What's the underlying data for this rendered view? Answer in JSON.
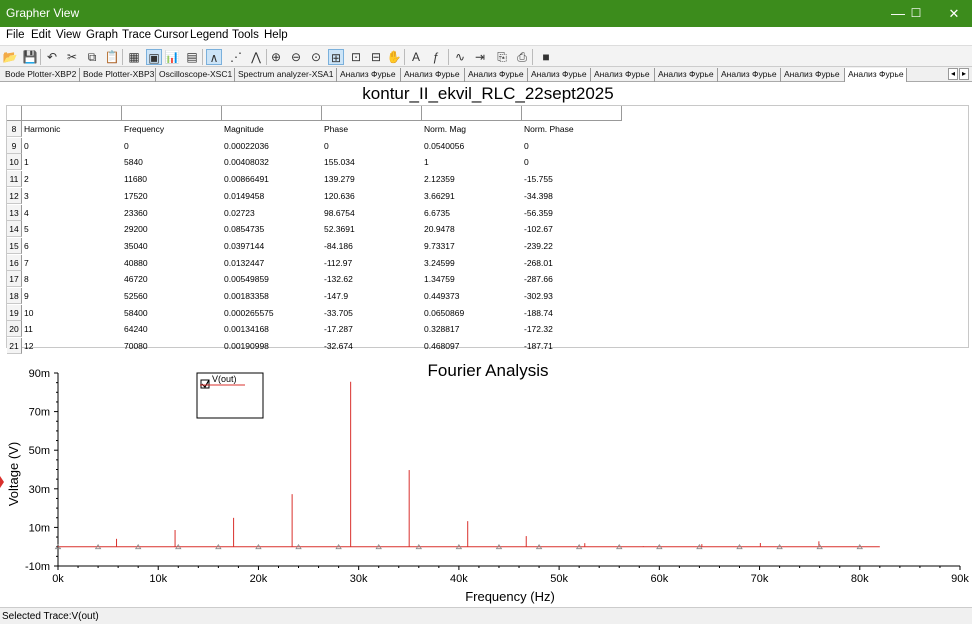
{
  "window": {
    "title": "Grapher View",
    "minimize_icon": "—",
    "maximize_icon": "☐",
    "close_icon": "✕"
  },
  "menu": [
    "File",
    "Edit",
    "View",
    "Graph",
    "Trace",
    "Cursor",
    "Legend",
    "Tools",
    "Help"
  ],
  "toolbar": [
    {
      "name": "open-icon",
      "glyph": "📂",
      "active": false
    },
    {
      "name": "save-icon",
      "glyph": "💾",
      "active": false
    },
    {
      "name": "undo-icon",
      "glyph": "↶",
      "active": false
    },
    {
      "name": "cut-icon",
      "glyph": "✂",
      "active": false
    },
    {
      "name": "copy-icon",
      "glyph": "⧉",
      "active": false
    },
    {
      "name": "paste-icon",
      "glyph": "📋",
      "active": false
    },
    {
      "name": "grid-icon",
      "glyph": "▦",
      "active": false
    },
    {
      "name": "view-icon",
      "glyph": "▣",
      "active": true
    },
    {
      "name": "chart-icon",
      "glyph": "📊",
      "active": false
    },
    {
      "name": "print-icon",
      "glyph": "▤",
      "active": false
    },
    {
      "name": "trace-icon",
      "glyph": "∧",
      "active": true
    },
    {
      "name": "cursor-1-icon",
      "glyph": "⋰",
      "active": false
    },
    {
      "name": "cursor-2-icon",
      "glyph": "⋀",
      "active": false
    },
    {
      "name": "zoom-in-icon",
      "glyph": "⊕",
      "active": false
    },
    {
      "name": "zoom-out-icon",
      "glyph": "⊖",
      "active": false
    },
    {
      "name": "zoom-fit-icon",
      "glyph": "⊙",
      "active": false
    },
    {
      "name": "zoom-area-icon",
      "glyph": "⊞",
      "active": true
    },
    {
      "name": "zoom-x-icon",
      "glyph": "⊡",
      "active": false
    },
    {
      "name": "zoom-y-icon",
      "glyph": "⊟",
      "active": false
    },
    {
      "name": "pan-hand-icon",
      "glyph": "✋",
      "active": false
    },
    {
      "name": "text-icon",
      "glyph": "A",
      "active": false
    },
    {
      "name": "formula-icon",
      "glyph": "ƒ",
      "active": false
    },
    {
      "name": "wave-icon",
      "glyph": "∿",
      "active": false
    },
    {
      "name": "export-icon",
      "glyph": "⇥",
      "active": false
    },
    {
      "name": "export-2-icon",
      "glyph": "⎘",
      "active": false
    },
    {
      "name": "export-3-icon",
      "glyph": "⎙",
      "active": false
    },
    {
      "name": "stop-icon",
      "glyph": "■",
      "active": false
    }
  ],
  "tabs": [
    "Bode Plotter-XBP2",
    "Bode Plotter-XBP3",
    "Oscilloscope-XSC1",
    "Spectrum analyzer-XSA1",
    "Анализ Фурье",
    "Анализ Фурье",
    "Анализ Фурье",
    "Анализ Фурье",
    "Анализ Фурье",
    "Анализ Фурье",
    "Анализ Фурье",
    "Анализ Фурье",
    "Анализ Фурье"
  ],
  "tab_arrows": [
    "◂",
    "▸"
  ],
  "table": {
    "title": "kontur_II_ekvil_RLC_22sept2025",
    "header_row_number": "8",
    "headers": [
      "Harmonic",
      "Frequency",
      "Magnitude",
      "Phase",
      "Norm. Mag",
      "Norm. Phase"
    ],
    "rows": [
      {
        "n": "9",
        "cells": [
          "0",
          "0",
          "0.00022036",
          "0",
          "0.0540056",
          "0"
        ]
      },
      {
        "n": "10",
        "cells": [
          "1",
          "5840",
          "0.00408032",
          "155.034",
          "1",
          "0"
        ]
      },
      {
        "n": "11",
        "cells": [
          "2",
          "11680",
          "0.00866491",
          "139.279",
          "2.12359",
          "-15.755"
        ]
      },
      {
        "n": "12",
        "cells": [
          "3",
          "17520",
          "0.0149458",
          "120.636",
          "3.66291",
          "-34.398"
        ]
      },
      {
        "n": "13",
        "cells": [
          "4",
          "23360",
          "0.02723",
          "98.6754",
          "6.6735",
          "-56.359"
        ]
      },
      {
        "n": "14",
        "cells": [
          "5",
          "29200",
          "0.0854735",
          "52.3691",
          "20.9478",
          "-102.67"
        ]
      },
      {
        "n": "15",
        "cells": [
          "6",
          "35040",
          "0.0397144",
          "-84.186",
          "9.73317",
          "-239.22"
        ]
      },
      {
        "n": "16",
        "cells": [
          "7",
          "40880",
          "0.0132447",
          "-112.97",
          "3.24599",
          "-268.01"
        ]
      },
      {
        "n": "17",
        "cells": [
          "8",
          "46720",
          "0.00549859",
          "-132.62",
          "1.34759",
          "-287.66"
        ]
      },
      {
        "n": "18",
        "cells": [
          "9",
          "52560",
          "0.00183358",
          "-147.9",
          "0.449373",
          "-302.93"
        ]
      },
      {
        "n": "19",
        "cells": [
          "10",
          "58400",
          "0.000265575",
          "-33.705",
          "0.0650869",
          "-188.74"
        ]
      },
      {
        "n": "20",
        "cells": [
          "11",
          "64240",
          "0.00134168",
          "-17.287",
          "0.328817",
          "-172.32"
        ]
      },
      {
        "n": "21",
        "cells": [
          "12",
          "70080",
          "0.00190998",
          "-32.674",
          "0.468097",
          "-187.71"
        ]
      }
    ]
  },
  "chart_data": {
    "type": "bar",
    "title": "Fourier Analysis",
    "xlabel": "Frequency (Hz)",
    "ylabel": "Voltage (V)",
    "xlim": [
      0,
      90000
    ],
    "ylim": [
      -10,
      90
    ],
    "xticks": [
      "0k",
      "10k",
      "20k",
      "30k",
      "40k",
      "50k",
      "60k",
      "70k",
      "80k",
      "90k"
    ],
    "yticks": [
      "90m",
      "70m",
      "50m",
      "30m",
      "10m",
      "-10m"
    ],
    "grid": false,
    "legend": {
      "position": "top-left",
      "entries": [
        "V(out)"
      ]
    },
    "series": [
      {
        "name": "V(out)",
        "color": "#d9302c",
        "x": [
          0,
          5840,
          11680,
          17520,
          23360,
          29200,
          35040,
          40880,
          46720,
          52560,
          58400,
          64240,
          70080,
          75920
        ],
        "values": [
          0.22,
          4.08,
          8.66,
          14.95,
          27.23,
          85.47,
          39.71,
          13.24,
          5.5,
          1.83,
          0.27,
          1.34,
          1.91,
          2.8
        ]
      }
    ],
    "marker_x": [
      0,
      4000,
      8000,
      12000,
      16000,
      20000,
      24000,
      28000,
      32000,
      36000,
      40000,
      44000,
      48000,
      52000,
      56000,
      60000,
      64000,
      68000,
      72000,
      76000,
      80000
    ],
    "x_end": 82000
  },
  "status": {
    "text": "Selected Trace:V(out)"
  }
}
